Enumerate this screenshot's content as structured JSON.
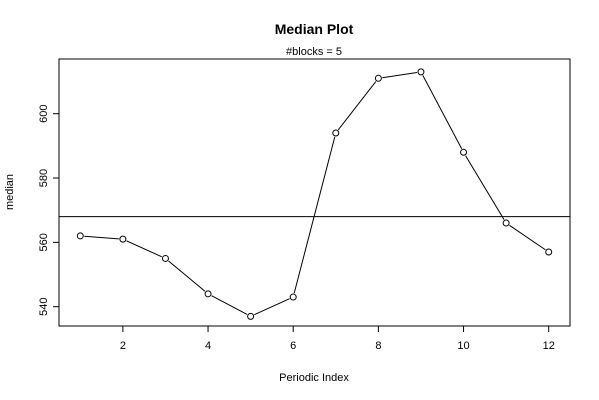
{
  "chart_data": {
    "type": "line",
    "title": "Median Plot",
    "subtitle": "#blocks =  5",
    "xlabel": "Periodic Index",
    "ylabel": "median",
    "x": [
      1,
      2,
      3,
      4,
      5,
      6,
      7,
      8,
      9,
      10,
      11,
      12
    ],
    "series": [
      {
        "values": [
          562,
          561,
          555,
          544,
          537,
          543,
          594,
          611,
          613,
          588,
          566,
          557
        ]
      }
    ],
    "reference_line": 568,
    "xlim": [
      0.5,
      12.5
    ],
    "ylim": [
      534,
      617
    ],
    "x_ticks": [
      2,
      4,
      6,
      8,
      10,
      12
    ],
    "y_ticks": [
      540,
      560,
      580,
      600
    ],
    "x_tick_labels": [
      "2",
      "4",
      "6",
      "8",
      "10",
      "12"
    ],
    "y_tick_labels": [
      "540",
      "560",
      "580",
      "600"
    ],
    "marker": "open-circle",
    "grid": false,
    "line_color": "#000000",
    "marker_color": "#000000"
  }
}
